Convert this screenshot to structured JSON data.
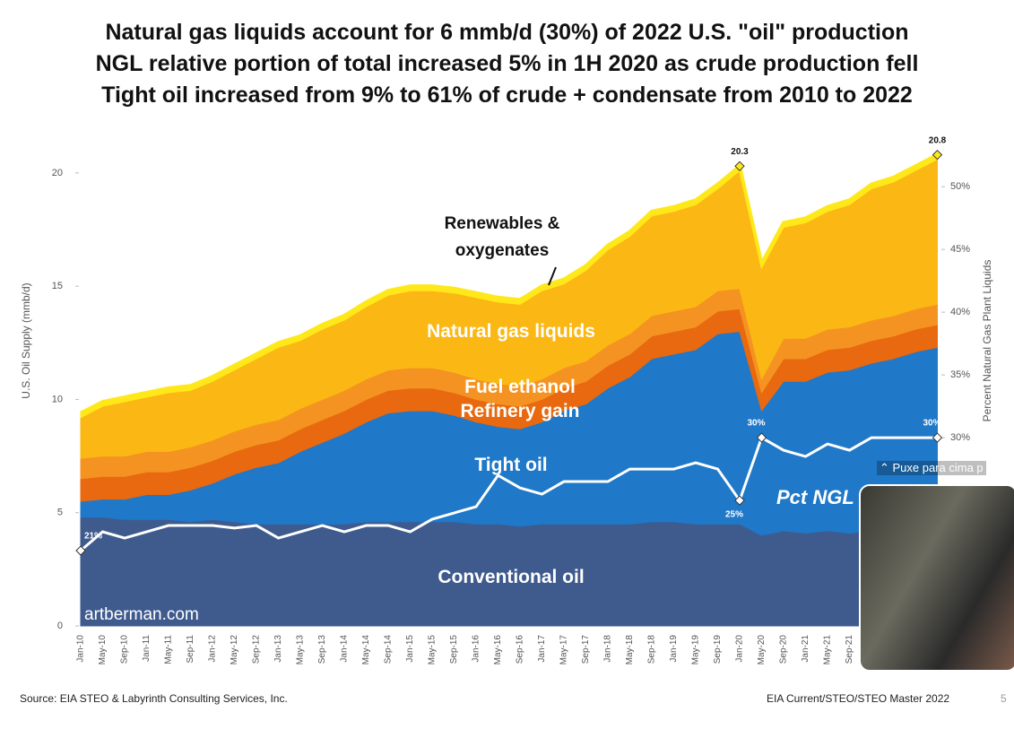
{
  "header": {
    "title_lines": [
      "Natural gas liquids account for 6 mmb/d (30%) of 2022 U.S. \"oil\" production",
      "NGL relative portion of total increased 5% in 1H 2020 as crude production fell",
      "Tight oil increased from 9% to 61% of crude + condensate from 2010 to 2022"
    ]
  },
  "chart_data": {
    "type": "stacked-area",
    "categories": [
      "Jan-10",
      "May-10",
      "Sep-10",
      "Jan-11",
      "May-11",
      "Sep-11",
      "Jan-12",
      "May-12",
      "Sep-12",
      "Jan-13",
      "May-13",
      "Sep-13",
      "Jan-14",
      "May-14",
      "Sep-14",
      "Jan-15",
      "May-15",
      "Sep-15",
      "Jan-16",
      "May-16",
      "Sep-16",
      "Jan-17",
      "May-17",
      "Sep-17",
      "Jan-18",
      "May-18",
      "Sep-18",
      "Jan-19",
      "May-19",
      "Sep-19",
      "Jan-20",
      "May-20",
      "Sep-20",
      "Jan-21",
      "May-21",
      "Sep-21",
      null,
      null,
      null,
      null
    ],
    "ylabel": "U.S. Oil Supply (mmb/d)",
    "y2label": "Percent Natural Gas Plant Liquids",
    "ylim": [
      0,
      21.5
    ],
    "yticks": [
      0,
      5,
      10,
      15,
      20
    ],
    "y2lim": [
      15,
      53.8
    ],
    "y2ticks": [
      {
        "value": 30,
        "label": "30%"
      },
      {
        "value": 35,
        "label": "35%"
      },
      {
        "value": 40,
        "label": "40%"
      },
      {
        "value": 45,
        "label": "45%"
      },
      {
        "value": 50,
        "label": "50%"
      }
    ],
    "series": [
      {
        "name": "Conventional oil",
        "color": "#3f5b8e",
        "values": [
          4.8,
          4.8,
          4.7,
          4.7,
          4.7,
          4.6,
          4.7,
          4.6,
          4.5,
          4.5,
          4.5,
          4.5,
          4.5,
          4.6,
          4.6,
          4.6,
          4.6,
          4.6,
          4.5,
          4.5,
          4.4,
          4.5,
          4.5,
          4.5,
          4.5,
          4.5,
          4.6,
          4.6,
          4.5,
          4.5,
          4.5,
          4.0,
          4.2,
          4.1,
          4.2,
          4.1,
          4.2,
          4.2,
          4.3,
          4.3
        ]
      },
      {
        "name": "Tight oil",
        "color": "#1f78c8",
        "values": [
          0.7,
          0.8,
          0.9,
          1.1,
          1.1,
          1.4,
          1.6,
          2.1,
          2.5,
          2.7,
          3.2,
          3.6,
          4.0,
          4.4,
          4.8,
          4.9,
          4.9,
          4.7,
          4.5,
          4.3,
          4.3,
          4.5,
          5.0,
          5.3,
          6.0,
          6.5,
          7.2,
          7.4,
          7.7,
          8.4,
          8.5,
          5.5,
          6.6,
          6.7,
          7.0,
          7.2,
          7.4,
          7.6,
          7.8,
          8.0
        ]
      },
      {
        "name": "Refinery gain",
        "color": "#e8690f",
        "values": [
          1.0,
          1.0,
          1.0,
          1.0,
          1.0,
          1.0,
          1.0,
          1.0,
          1.0,
          1.0,
          1.0,
          1.0,
          1.0,
          1.0,
          1.0,
          1.0,
          1.0,
          1.0,
          1.0,
          1.0,
          1.0,
          1.0,
          1.0,
          1.0,
          1.0,
          1.0,
          1.0,
          1.0,
          1.0,
          1.0,
          1.0,
          0.8,
          1.0,
          1.0,
          1.0,
          1.0,
          1.0,
          1.0,
          1.0,
          1.0
        ]
      },
      {
        "name": "Fuel ethanol",
        "color": "#f49321",
        "values": [
          0.9,
          0.9,
          0.9,
          0.9,
          0.9,
          0.9,
          0.9,
          0.9,
          0.9,
          0.9,
          0.9,
          0.9,
          0.9,
          0.9,
          0.9,
          0.9,
          0.9,
          0.9,
          0.9,
          0.9,
          0.9,
          0.9,
          0.9,
          0.9,
          0.9,
          0.9,
          0.9,
          0.9,
          0.9,
          0.9,
          0.9,
          0.6,
          0.9,
          0.9,
          0.9,
          0.9,
          0.9,
          0.9,
          0.9,
          0.9
        ]
      },
      {
        "name": "Natural gas liquids",
        "color": "#fbb714",
        "values": [
          1.8,
          2.2,
          2.4,
          2.4,
          2.6,
          2.5,
          2.6,
          2.7,
          2.9,
          3.2,
          3.0,
          3.1,
          3.1,
          3.2,
          3.3,
          3.4,
          3.4,
          3.5,
          3.6,
          3.6,
          3.6,
          3.9,
          3.7,
          4.0,
          4.2,
          4.3,
          4.4,
          4.4,
          4.5,
          4.5,
          5.2,
          4.9,
          4.9,
          5.1,
          5.2,
          5.4,
          5.8,
          5.9,
          6.1,
          6.4
        ]
      },
      {
        "name": "Renewables & oxygenates",
        "color": "#ffe81a",
        "values": [
          0.2,
          0.2,
          0.2,
          0.2,
          0.2,
          0.2,
          0.2,
          0.2,
          0.2,
          0.2,
          0.2,
          0.2,
          0.2,
          0.2,
          0.2,
          0.2,
          0.2,
          0.2,
          0.2,
          0.2,
          0.2,
          0.2,
          0.2,
          0.2,
          0.2,
          0.2,
          0.2,
          0.2,
          0.2,
          0.2,
          0.2,
          0.2,
          0.2,
          0.2,
          0.2,
          0.2,
          0.2,
          0.2,
          0.2,
          0.2
        ]
      },
      {
        "name": "Pct NGL",
        "color": "#ffffff",
        "axis": "y2",
        "values": [
          21,
          22.5,
          22,
          22.5,
          23,
          23,
          23,
          22.8,
          23,
          22,
          22.5,
          23,
          22.5,
          23,
          23,
          22.5,
          23.5,
          24,
          24.5,
          27,
          26,
          25.5,
          26.5,
          26.5,
          26.5,
          27.5,
          27.5,
          27.5,
          28,
          27.5,
          25,
          30,
          29,
          28.5,
          29.5,
          29,
          30,
          30,
          30,
          30
        ],
        "value_labels": [
          "21%",
          null,
          null,
          null,
          null,
          null,
          null,
          null,
          null,
          null,
          null,
          null,
          null,
          null,
          null,
          null,
          null,
          null,
          null,
          null,
          null,
          null,
          null,
          null,
          null,
          null,
          null,
          null,
          null,
          null,
          "25%",
          "30%",
          null,
          null,
          null,
          null,
          null,
          null,
          null,
          "30%"
        ]
      }
    ],
    "annotations": [
      "20.3",
      "20.8"
    ],
    "watermark": "artberman.com"
  },
  "footer": {
    "source": "Source: EIA STEO &  Labyrinth Consulting Services, Inc.",
    "file": "EIA Current/STEO/STEO Master 2022",
    "page": "5"
  },
  "overlay": {
    "hint": "⌃ Puxe para cima p"
  }
}
